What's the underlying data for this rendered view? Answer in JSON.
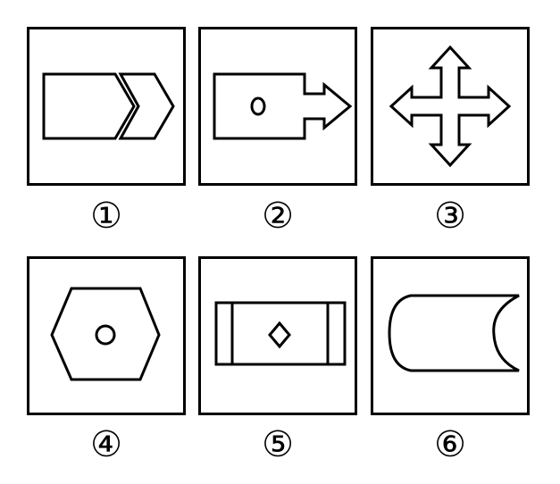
{
  "figures": [
    {
      "label": "①",
      "shape": "pentagon-arrow-with-chevron"
    },
    {
      "label": "②",
      "shape": "rectangle-with-circle-and-arrow"
    },
    {
      "label": "③",
      "shape": "four-way-arrow-cross"
    },
    {
      "label": "④",
      "shape": "hexagon-with-circle"
    },
    {
      "label": "⑤",
      "shape": "rectangle-with-bars-and-diamond"
    },
    {
      "label": "⑥",
      "shape": "curved-cut-rectangle"
    }
  ],
  "colors": {
    "stroke": "#000000",
    "background": "#ffffff"
  }
}
